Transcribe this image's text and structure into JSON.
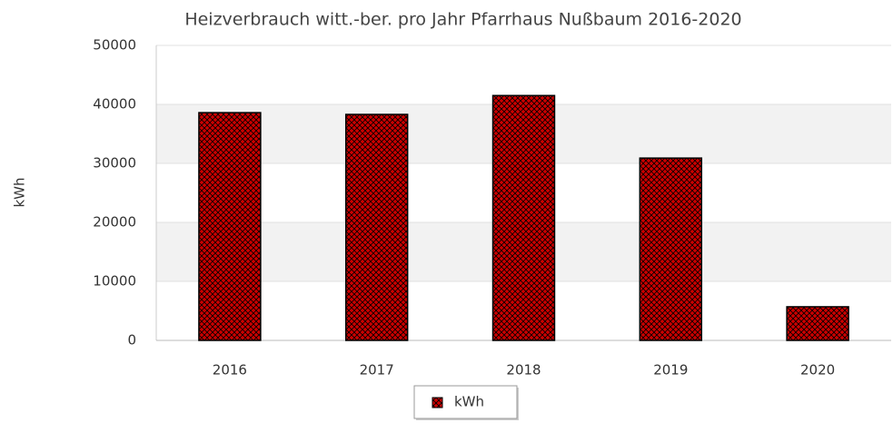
{
  "chart_data": {
    "type": "bar",
    "title": "Heizverbrauch witt.-ber. pro Jahr Pfarrhaus Nußbaum 2016-2020",
    "y_label": "kWh",
    "categories": [
      "2016",
      "2017",
      "2018",
      "2019",
      "2020"
    ],
    "series": [
      {
        "name": "kWh",
        "color": "#cc0000",
        "values": [
          38600,
          38300,
          41500,
          30900,
          5700
        ]
      }
    ],
    "ylim": [
      0,
      50000
    ],
    "yticks": [
      0,
      10000,
      20000,
      30000,
      40000,
      50000
    ],
    "grid": true,
    "legend": "bottom"
  }
}
